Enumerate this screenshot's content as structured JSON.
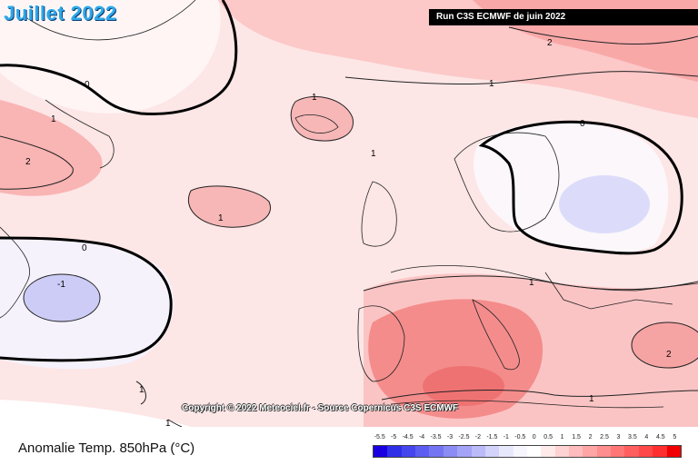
{
  "header": {
    "title": "Juillet 2022",
    "run_label": "Run C3S ECMWF de juin 2022"
  },
  "map": {
    "copyright": "Copyright © 2022 Meteociel.fr - Source Copernicus C3S ECMWF",
    "contour_labels": [
      "0",
      "1",
      "2",
      "-1"
    ]
  },
  "footer": {
    "caption": "Anomalie Temp. 850hPa (°C)"
  },
  "legend": {
    "labels": [
      "-5.5",
      "-5",
      "-4.5",
      "-4",
      "-3.5",
      "-3",
      "-2.5",
      "-2",
      "-1.5",
      "-1",
      "-0.5",
      "0",
      "0.5",
      "1",
      "1.5",
      "2",
      "2.5",
      "3",
      "3.5",
      "4",
      "4.5",
      "5"
    ],
    "colors": [
      "#1a00e0",
      "#2f2fe8",
      "#4646ee",
      "#5d5df1",
      "#7474f3",
      "#8c8cf5",
      "#a3a3f7",
      "#bbbbf9",
      "#d2d2fb",
      "#e8e8fd",
      "#f6f6ff",
      "#ffffff",
      "#ffeaea",
      "#ffd3d3",
      "#ffbcbc",
      "#ffa5a5",
      "#ff8e8e",
      "#ff7676",
      "#ff5f5f",
      "#ff4848",
      "#ff2f2f",
      "#f00000"
    ]
  }
}
